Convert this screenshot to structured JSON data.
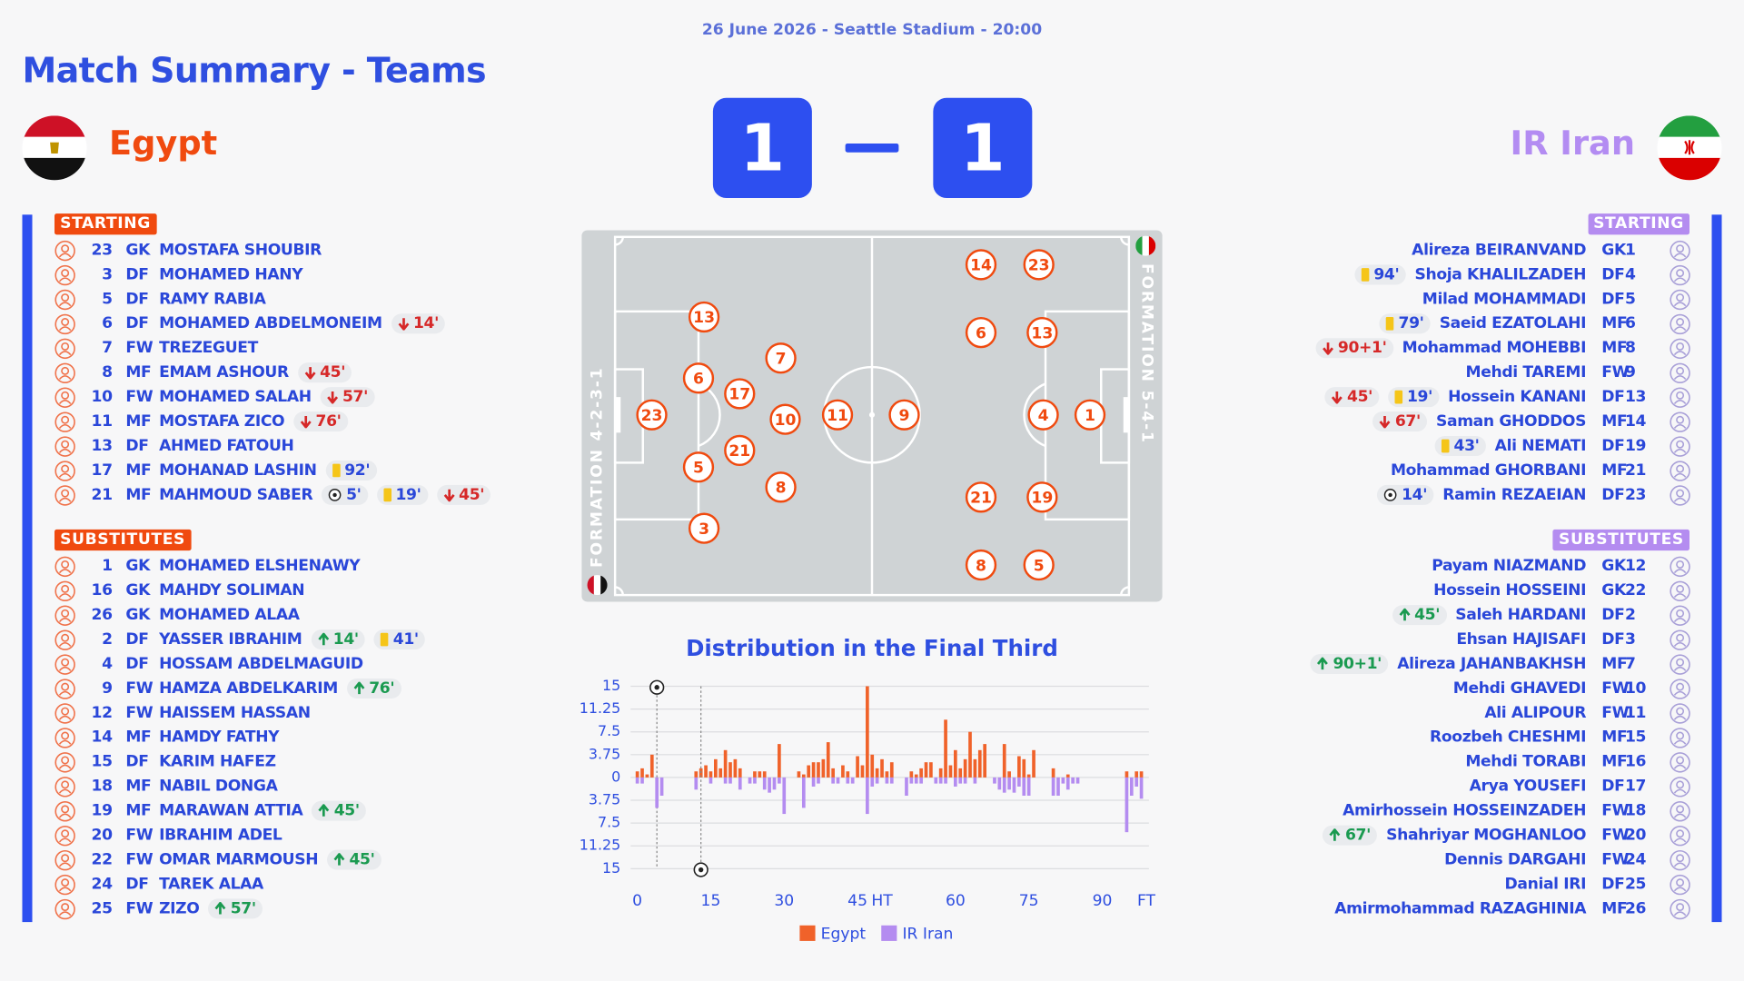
{
  "header": {
    "info": "26 June 2026 - Seattle Stadium - 20:00",
    "title": "Match Summary - Teams"
  },
  "home": {
    "name": "Egypt",
    "score": 1,
    "formation": "FORMATION 4-2-3-1",
    "starting_label": "STARTING",
    "subs_label": "SUBSTITUTES",
    "pitch": [
      23,
      13,
      6,
      5,
      3,
      17,
      21,
      7,
      10,
      8,
      11
    ],
    "starting": [
      {
        "number": 23,
        "pos": "GK",
        "name": "MOSTAFA SHOUBIR",
        "events": []
      },
      {
        "number": 3,
        "pos": "DF",
        "name": "MOHAMED HANY",
        "events": []
      },
      {
        "number": 5,
        "pos": "DF",
        "name": "RAMY RABIA",
        "events": []
      },
      {
        "number": 6,
        "pos": "DF",
        "name": "MOHAMED ABDELMONEIM",
        "events": [
          {
            "type": "off",
            "label": "14'"
          }
        ]
      },
      {
        "number": 7,
        "pos": "FW",
        "name": "TREZEGUET",
        "events": []
      },
      {
        "number": 8,
        "pos": "MF",
        "name": "EMAM ASHOUR",
        "events": [
          {
            "type": "off",
            "label": "45'"
          }
        ]
      },
      {
        "number": 10,
        "pos": "FW",
        "name": "MOHAMED SALAH",
        "events": [
          {
            "type": "off",
            "label": "57'"
          }
        ]
      },
      {
        "number": 11,
        "pos": "MF",
        "name": "MOSTAFA ZICO",
        "events": [
          {
            "type": "off",
            "label": "76'"
          }
        ]
      },
      {
        "number": 13,
        "pos": "DF",
        "name": "AHMED FATOUH",
        "events": []
      },
      {
        "number": 17,
        "pos": "MF",
        "name": "MOHANAD LASHIN",
        "events": [
          {
            "type": "card",
            "label": "92'"
          }
        ]
      },
      {
        "number": 21,
        "pos": "MF",
        "name": "MAHMOUD SABER",
        "events": [
          {
            "type": "goal",
            "label": "5'"
          },
          {
            "type": "card",
            "label": "19'"
          },
          {
            "type": "off",
            "label": "45'"
          }
        ]
      }
    ],
    "substitutes": [
      {
        "number": 1,
        "pos": "GK",
        "name": "MOHAMED ELSHENAWY",
        "events": []
      },
      {
        "number": 16,
        "pos": "GK",
        "name": "MAHDY SOLIMAN",
        "events": []
      },
      {
        "number": 26,
        "pos": "GK",
        "name": "MOHAMED ALAA",
        "events": []
      },
      {
        "number": 2,
        "pos": "DF",
        "name": "YASSER IBRAHIM",
        "events": [
          {
            "type": "on",
            "label": "14'"
          },
          {
            "type": "card",
            "label": "41'"
          }
        ]
      },
      {
        "number": 4,
        "pos": "DF",
        "name": "HOSSAM ABDELMAGUID",
        "events": []
      },
      {
        "number": 9,
        "pos": "FW",
        "name": "HAMZA ABDELKARIM",
        "events": [
          {
            "type": "on",
            "label": "76'"
          }
        ]
      },
      {
        "number": 12,
        "pos": "FW",
        "name": "HAISSEM HASSAN",
        "events": []
      },
      {
        "number": 14,
        "pos": "MF",
        "name": "HAMDY FATHY",
        "events": []
      },
      {
        "number": 15,
        "pos": "DF",
        "name": "KARIM HAFEZ",
        "events": []
      },
      {
        "number": 18,
        "pos": "MF",
        "name": "NABIL DONGA",
        "events": []
      },
      {
        "number": 19,
        "pos": "MF",
        "name": "MARAWAN ATTIA",
        "events": [
          {
            "type": "on",
            "label": "45'"
          }
        ]
      },
      {
        "number": 20,
        "pos": "FW",
        "name": "IBRAHIM ADEL",
        "events": []
      },
      {
        "number": 22,
        "pos": "FW",
        "name": "OMAR MARMOUSH",
        "events": [
          {
            "type": "on",
            "label": "45'"
          }
        ]
      },
      {
        "number": 24,
        "pos": "DF",
        "name": "TAREK ALAA",
        "events": []
      },
      {
        "number": 25,
        "pos": "FW",
        "name": "ZIZO",
        "events": [
          {
            "type": "on",
            "label": "57'"
          }
        ]
      }
    ]
  },
  "away": {
    "name": "IR Iran",
    "score": 1,
    "formation": "FORMATION 5-4-1",
    "starting_label": "STARTING",
    "subs_label": "SUBSTITUTES",
    "pitch": [
      9,
      14,
      23,
      6,
      13,
      4,
      1,
      21,
      19,
      8,
      5
    ],
    "starting": [
      {
        "number": 1,
        "pos": "GK",
        "name": "Alireza BEIRANVAND",
        "events": []
      },
      {
        "number": 4,
        "pos": "DF",
        "name": "Shoja KHALILZADEH",
        "events": [
          {
            "type": "card",
            "label": "94'"
          }
        ]
      },
      {
        "number": 5,
        "pos": "DF",
        "name": "Milad MOHAMMADI",
        "events": []
      },
      {
        "number": 6,
        "pos": "MF",
        "name": "Saeid EZATOLAHI",
        "events": [
          {
            "type": "card",
            "label": "79'"
          }
        ]
      },
      {
        "number": 8,
        "pos": "MF",
        "name": "Mohammad MOHEBBI",
        "events": [
          {
            "type": "off",
            "label": "90+1'"
          }
        ]
      },
      {
        "number": 9,
        "pos": "FW",
        "name": "Mehdi TAREMI",
        "events": []
      },
      {
        "number": 13,
        "pos": "DF",
        "name": "Hossein KANANI",
        "events": [
          {
            "type": "off",
            "label": "45'"
          },
          {
            "type": "card",
            "label": "19'"
          }
        ]
      },
      {
        "number": 14,
        "pos": "MF",
        "name": "Saman GHODDOS",
        "events": [
          {
            "type": "off",
            "label": "67'"
          }
        ]
      },
      {
        "number": 19,
        "pos": "DF",
        "name": "Ali NEMATI",
        "events": [
          {
            "type": "card",
            "label": "43'"
          }
        ]
      },
      {
        "number": 21,
        "pos": "MF",
        "name": "Mohammad GHORBANI",
        "events": []
      },
      {
        "number": 23,
        "pos": "DF",
        "name": "Ramin REZAEIAN",
        "events": [
          {
            "type": "goal",
            "label": "14'"
          }
        ]
      }
    ],
    "substitutes": [
      {
        "number": 12,
        "pos": "GK",
        "name": "Payam NIAZMAND",
        "events": []
      },
      {
        "number": 22,
        "pos": "GK",
        "name": "Hossein HOSSEINI",
        "events": []
      },
      {
        "number": 2,
        "pos": "DF",
        "name": "Saleh HARDANI",
        "events": [
          {
            "type": "on",
            "label": "45'"
          }
        ]
      },
      {
        "number": 3,
        "pos": "DF",
        "name": "Ehsan HAJISAFI",
        "events": []
      },
      {
        "number": 7,
        "pos": "MF",
        "name": "Alireza JAHANBAKHSH",
        "events": [
          {
            "type": "on",
            "label": "90+1'"
          }
        ]
      },
      {
        "number": 10,
        "pos": "FW",
        "name": "Mehdi GHAVEDI",
        "events": []
      },
      {
        "number": 11,
        "pos": "FW",
        "name": "Ali ALIPOUR",
        "events": []
      },
      {
        "number": 15,
        "pos": "MF",
        "name": "Roozbeh CHESHMI",
        "events": []
      },
      {
        "number": 16,
        "pos": "MF",
        "name": "Mehdi TORABI",
        "events": []
      },
      {
        "number": 17,
        "pos": "DF",
        "name": "Arya YOUSEFI",
        "events": []
      },
      {
        "number": 18,
        "pos": "FW",
        "name": "Amirhossein HOSSEINZADEH",
        "events": []
      },
      {
        "number": 20,
        "pos": "FW",
        "name": "Shahriyar MOGHANLOO",
        "events": [
          {
            "type": "on",
            "label": "67'"
          }
        ]
      },
      {
        "number": 24,
        "pos": "FW",
        "name": "Dennis DARGAHI",
        "events": []
      },
      {
        "number": 25,
        "pos": "DF",
        "name": "Danial IRI",
        "events": []
      },
      {
        "number": 26,
        "pos": "MF",
        "name": "Amirmohammad RAZAGHINIA",
        "events": []
      }
    ]
  },
  "chart_data": {
    "type": "bar",
    "title": "Distribution in the Final Third",
    "categories": [
      "0",
      null,
      null,
      null,
      null,
      null,
      null,
      null,
      null,
      null,
      null,
      null,
      null,
      null,
      null,
      "15",
      null,
      null,
      null,
      null,
      null,
      null,
      null,
      null,
      null,
      null,
      null,
      null,
      null,
      null,
      "30",
      null,
      null,
      null,
      null,
      null,
      null,
      null,
      null,
      null,
      null,
      null,
      null,
      null,
      null,
      "45",
      null,
      null,
      null,
      null,
      "HT",
      null,
      null,
      null,
      null,
      null,
      null,
      null,
      null,
      null,
      null,
      null,
      null,
      null,
      null,
      "60",
      null,
      null,
      null,
      null,
      null,
      null,
      null,
      null,
      null,
      null,
      null,
      null,
      null,
      null,
      "75",
      null,
      null,
      null,
      null,
      null,
      null,
      null,
      null,
      null,
      null,
      null,
      null,
      null,
      null,
      "90",
      null,
      null,
      null,
      null,
      null,
      null,
      null,
      null,
      "FT"
    ],
    "series": [
      {
        "name": "Egypt",
        "color": "#f0622a",
        "goals": [
          4
        ],
        "values": [
          1,
          1.5,
          0.5,
          3.75,
          0,
          0,
          0,
          0,
          0,
          0,
          0,
          0,
          1,
          1.5,
          2,
          1,
          3,
          1.5,
          4.5,
          2.5,
          3,
          1.5,
          0,
          0,
          1,
          1,
          1,
          0,
          0,
          5.5,
          0,
          0,
          0,
          1,
          0.5,
          2,
          2.5,
          2.5,
          3,
          5.8,
          1.5,
          0,
          2,
          1,
          0,
          3.5,
          2,
          15,
          3.75,
          1.5,
          3,
          1,
          2.5,
          0,
          0,
          0,
          1,
          0.5,
          1.5,
          2.5,
          2.5,
          0,
          1.5,
          9.5,
          2,
          4.5,
          1.5,
          3,
          7.5,
          3,
          4.5,
          5.5,
          0,
          0,
          0,
          5.5,
          1,
          0,
          3.5,
          3,
          0.5,
          4.5,
          0,
          0,
          0,
          1.5,
          0,
          0,
          0.5,
          0,
          0,
          0,
          0,
          0,
          0,
          0,
          0,
          0,
          0,
          0,
          1,
          0,
          1,
          1,
          0
        ]
      },
      {
        "name": "IR Iran",
        "color": "#b48cf0",
        "goals": [
          13
        ],
        "values": [
          -1,
          -1,
          0,
          0,
          -5,
          -3,
          0,
          0,
          0,
          0,
          0,
          0,
          -2,
          0,
          0,
          -1,
          0,
          0,
          -1,
          -1,
          0,
          -2,
          0,
          -1,
          -1,
          0,
          -2,
          -2.5,
          -2,
          -1,
          -6,
          0,
          0,
          0,
          -5,
          0,
          -1.5,
          -1,
          0,
          0,
          -1,
          -1,
          0,
          -1,
          -1,
          0,
          0,
          -6,
          -1.5,
          -1,
          0,
          -1,
          -1,
          0,
          0,
          -3,
          -1,
          -1,
          -1,
          0,
          0,
          -1,
          -1,
          -1,
          0,
          -1.5,
          -1,
          -1,
          0,
          -1,
          0,
          0,
          0,
          -1,
          -2,
          -2.5,
          -2,
          -2.5,
          -1.5,
          -3,
          -3,
          0,
          0,
          0,
          0,
          -3,
          -3,
          -1,
          -2,
          -1,
          -1,
          0,
          0,
          0,
          0,
          0,
          0,
          0,
          0,
          0,
          -9,
          -3,
          -1.5,
          -3.5,
          0
        ]
      }
    ],
    "ylim": [
      -15,
      15
    ],
    "yticks": [
      15,
      11.25,
      7.5,
      3.75,
      0,
      {
        "value": -3.75,
        "label": "3.75"
      },
      {
        "value": -7.5,
        "label": "7.5"
      },
      {
        "value": -11.25,
        "label": "11.25"
      },
      {
        "value": -15,
        "label": "15"
      }
    ],
    "grid": true
  }
}
